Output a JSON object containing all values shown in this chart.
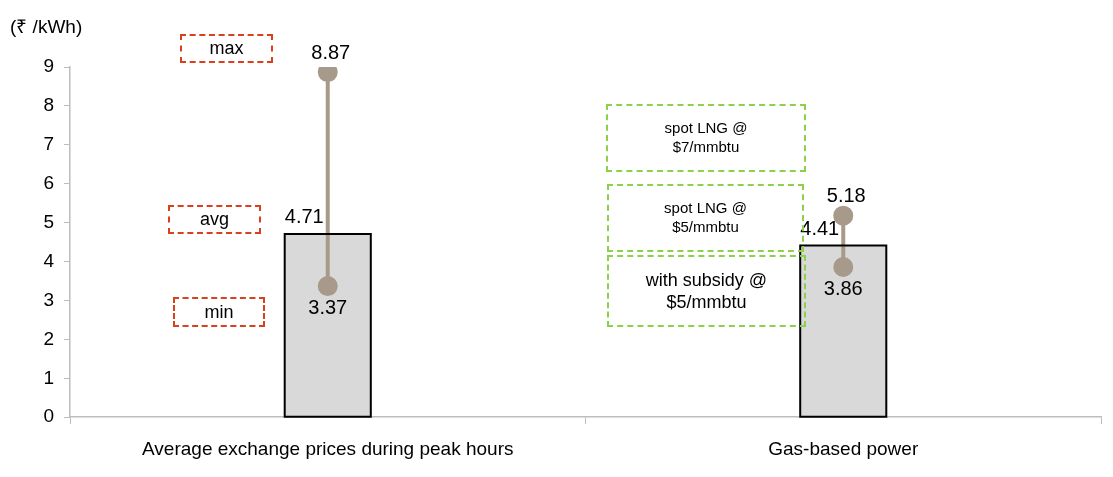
{
  "chart_data": {
    "type": "bar",
    "ylabel": "(₹ /kWh)",
    "categories": [
      "Average exchange prices during peak hours",
      "Gas-based power"
    ],
    "series": [
      {
        "color": "#d9d9d9",
        "values": [
          4.71,
          4.41
        ]
      },
      {
        "type": "line",
        "color": "#a89a8a",
        "x": [
          "Average exchange prices during peak hours",
          "Average exchange prices during peak hours"
        ],
        "values": [
          3.37,
          8.87
        ]
      },
      {
        "type": "line",
        "color": "#a89a8a",
        "x": [
          "Gas-based power",
          "Gas-based power"
        ],
        "values": [
          3.86,
          5.18
        ]
      }
    ],
    "marker": "circle",
    "data_labels": true,
    "ylim": [
      0,
      9
    ],
    "yticks": [
      0,
      1,
      2,
      3,
      4,
      5,
      6,
      7,
      8,
      9
    ],
    "grid": false,
    "legend": false,
    "annotations": [
      "max",
      "avg",
      "min",
      "spot LNG @ $7/mmbtu",
      "spot LNG @ $5/mmbtu",
      "with subsidy @ $5/mmbtu"
    ]
  }
}
